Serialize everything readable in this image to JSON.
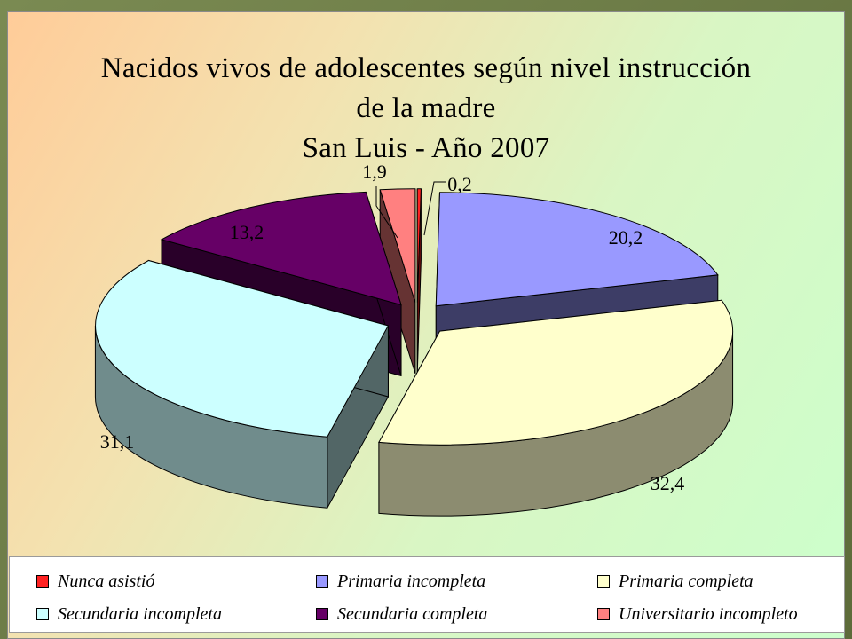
{
  "chart_data": {
    "type": "pie",
    "title_lines": [
      "Nacidos vivos de adolescentes según nivel instrucción",
      "de la madre",
      "San Luis - Año 2007"
    ],
    "categories": [
      "Nunca asistió",
      "Primaria incompleta",
      "Primaria completa",
      "Secundaria incompleta",
      "Secundaria completa",
      "Universitario incompleto"
    ],
    "values": [
      0.2,
      20.2,
      32.4,
      31.1,
      13.2,
      1.9
    ],
    "value_labels": [
      "0,2",
      "20,2",
      "32,4",
      "31,1",
      "13,2",
      "1,9"
    ],
    "colors": [
      "#ff2222",
      "#9999ff",
      "#ffffcc",
      "#ccffff",
      "#660066",
      "#ff8080"
    ],
    "legend_position": "bottom",
    "three_d": true,
    "exploded": true
  }
}
